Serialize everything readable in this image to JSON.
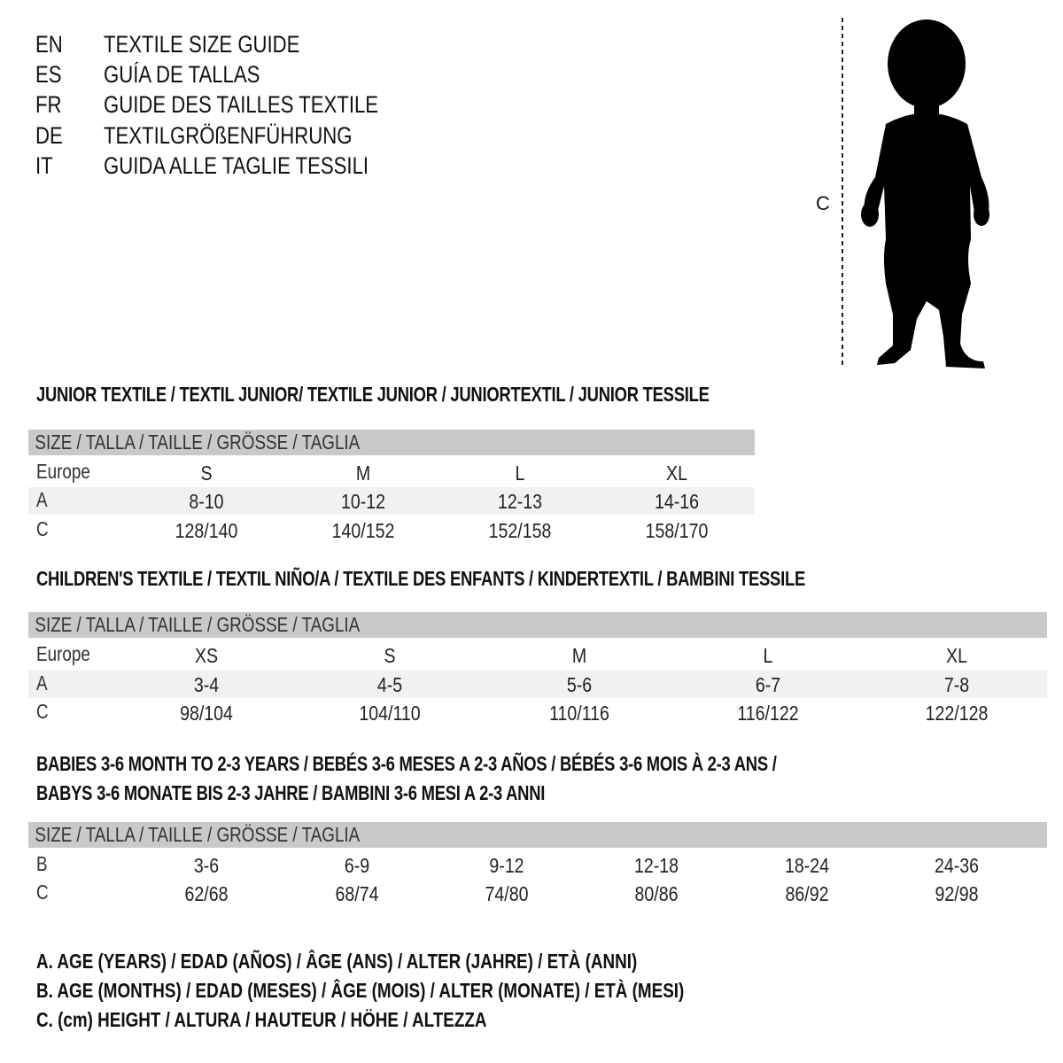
{
  "title_lines": [
    {
      "code": "EN",
      "text": "TEXTILE SIZE GUIDE"
    },
    {
      "code": "ES",
      "text": "GUÍA DE TALLAS"
    },
    {
      "code": "FR",
      "text": "GUIDE DES TAILLES TEXTILE"
    },
    {
      "code": "DE",
      "text": "TEXTILGRÖßENFÜHRUNG"
    },
    {
      "code": "IT",
      "text": "GUIDA ALLE TAGLIE TESSILI"
    }
  ],
  "figure": {
    "measure_label": "C",
    "icon": "baby-silhouette-icon"
  },
  "colors": {
    "header_band": "#c9c9c9",
    "alt_row": "#f1f1f1",
    "text": "#111111"
  },
  "sections": [
    {
      "title": "JUNIOR TEXTILE / TEXTIL JUNIOR/ TEXTILE JUNIOR / JUNIORTEXTIL / JUNIOR TESSILE",
      "header": "SIZE / TALLA / TAILLE / GRÖSSE / TAGLIA",
      "rows": [
        {
          "label": "Europe",
          "values": [
            "S",
            "M",
            "L",
            "XL"
          ]
        },
        {
          "label": "A",
          "values": [
            "8-10",
            "10-12",
            "12-13",
            "14-16"
          ]
        },
        {
          "label": "C",
          "values": [
            "128/140",
            "140/152",
            "152/158",
            "158/170"
          ]
        }
      ]
    },
    {
      "title": "CHILDREN'S TEXTILE / TEXTIL NIÑO/A / TEXTILE DES ENFANTS / KINDERTEXTIL / BAMBINI TESSILE",
      "header": "SIZE / TALLA / TAILLE / GRÖSSE / TAGLIA",
      "rows": [
        {
          "label": "Europe",
          "values": [
            "XS",
            "S",
            "M",
            "L",
            "XL"
          ]
        },
        {
          "label": "A",
          "values": [
            "3-4",
            "4-5",
            "5-6",
            "6-7",
            "7-8"
          ]
        },
        {
          "label": "C",
          "values": [
            "98/104",
            "104/110",
            "110/116",
            "116/122",
            "122/128"
          ]
        }
      ]
    },
    {
      "title": "BABIES 3-6 MONTH TO 2-3 YEARS / BEBÉS 3-6 MESES A 2-3 AÑOS / BÉBÉS 3-6 MOIS À 2-3 ANS /",
      "title2": "BABYS 3-6 MONATE BIS 2-3 JAHRE / BAMBINI 3-6 MESI A 2-3 ANNI",
      "header": "SIZE / TALLA / TAILLE / GRÖSSE / TAGLIA",
      "rows": [
        {
          "label": "B",
          "values": [
            "3-6",
            "6-9",
            "9-12",
            "12-18",
            "18-24",
            "24-36"
          ]
        },
        {
          "label": "C",
          "values": [
            "62/68",
            "68/74",
            "74/80",
            "80/86",
            "86/92",
            "92/98"
          ]
        }
      ]
    }
  ],
  "legend": [
    "A. AGE (YEARS) / EDAD (AÑOS) / ÂGE (ANS) / ALTER (JAHRE) / ETÀ (ANNI)",
    "B. AGE (MONTHS) / EDAD (MESES) / ÂGE (MOIS) / ALTER (MONATE) / ETÀ (MESI)",
    "C. (cm) HEIGHT / ALTURA / HAUTEUR / HÖHE / ALTEZZA"
  ]
}
